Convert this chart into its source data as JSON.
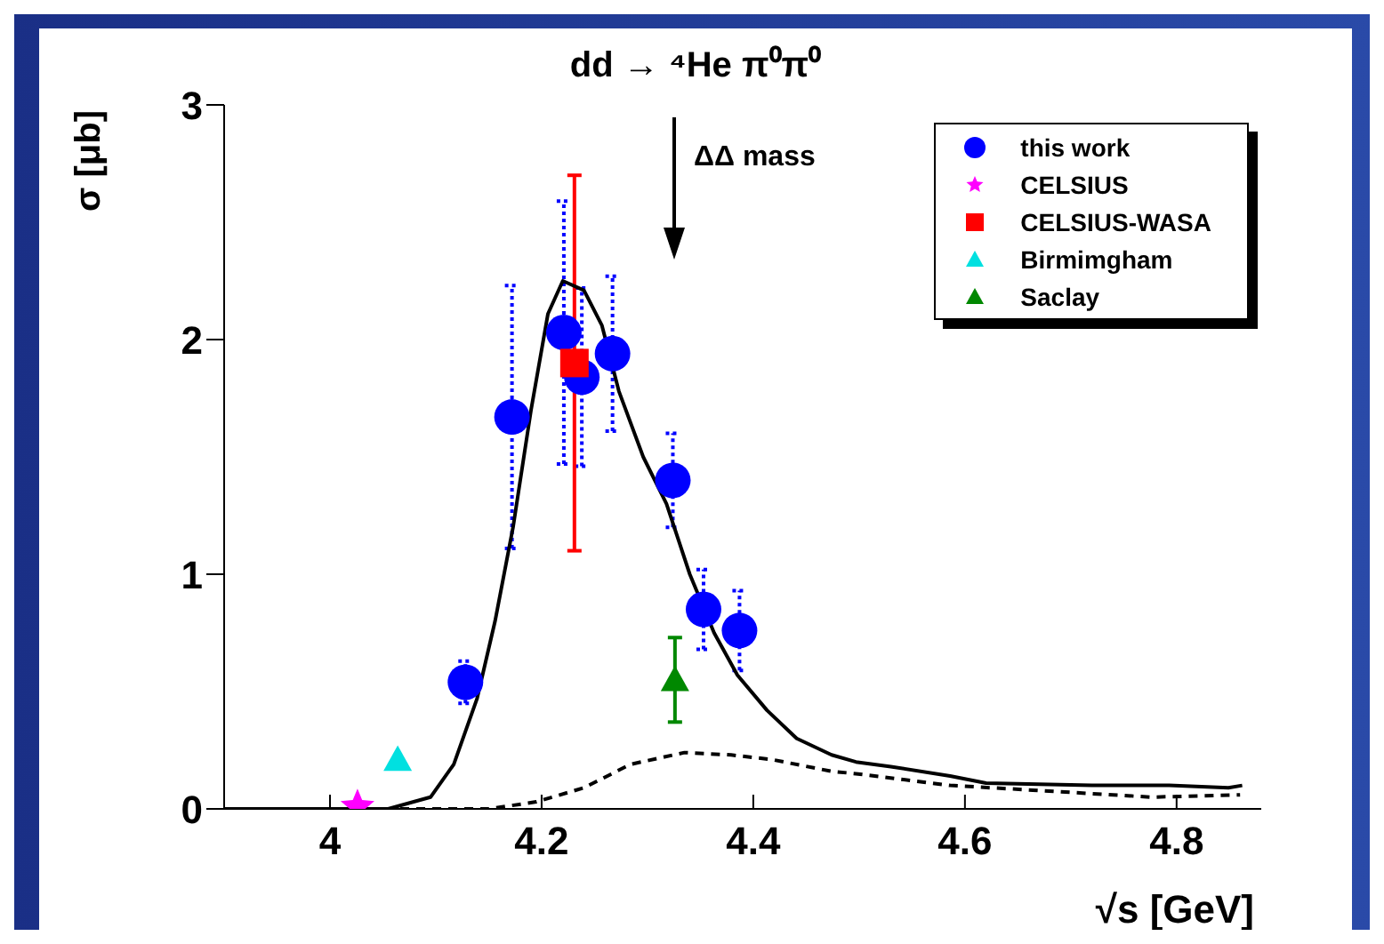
{
  "chart_data": {
    "type": "scatter",
    "title": "dd → ⁴He π⁰π⁰",
    "xlabel": "√s [GeV]",
    "ylabel": "σ [μb]",
    "xlim": [
      3.9,
      4.88
    ],
    "xticks": [
      4,
      4.2,
      4.4,
      4.6,
      4.8
    ],
    "ylim": [
      0,
      3
    ],
    "yticks": [
      0,
      1,
      2,
      3
    ],
    "grid": false,
    "legend": "top right",
    "annotations": [
      "ΔΔ mass"
    ],
    "series": [
      {
        "name": "this work",
        "marker": "circle",
        "color": "#0000ff",
        "x": [
          4.128,
          4.172,
          4.221,
          4.238,
          4.267,
          4.324,
          4.353,
          4.387
        ],
        "values": [
          0.54,
          1.67,
          2.03,
          1.84,
          1.94,
          1.4,
          0.85,
          0.76
        ],
        "errors": [
          0.09,
          0.56,
          0.56,
          0.38,
          0.33,
          0.2,
          0.17,
          0.17
        ]
      },
      {
        "name": "CELSIUS",
        "marker": "star",
        "color": "#ff00ff",
        "x": [
          4.026
        ],
        "values": [
          0.01
        ]
      },
      {
        "name": "CELSIUS-WASA",
        "marker": "square",
        "color": "#ff0000",
        "x": [
          4.231
        ],
        "values": [
          1.9
        ],
        "errors": [
          0.8
        ]
      },
      {
        "name": "Birmimgham",
        "marker": "triangle",
        "color": "#00e0e0",
        "x": [
          4.064
        ],
        "values": [
          0.21
        ]
      },
      {
        "name": "Saclay",
        "marker": "triangle",
        "color": "#008800",
        "x": [
          4.326
        ],
        "values": [
          0.55
        ],
        "errors": [
          0.18
        ]
      },
      {
        "type": "line",
        "marker": "none",
        "line_style": "solid",
        "color": "#000000",
        "x": [
          3.9,
          4.055,
          4.095,
          4.117,
          4.139,
          4.156,
          4.173,
          4.19,
          4.206,
          4.22,
          4.24,
          4.257,
          4.273,
          4.296,
          4.318,
          4.34,
          4.363,
          4.385,
          4.413,
          4.441,
          4.474,
          4.497,
          4.53,
          4.586,
          4.62,
          4.72,
          4.793,
          4.849,
          4.862
        ],
        "values": [
          0,
          0,
          0.05,
          0.19,
          0.47,
          0.8,
          1.2,
          1.7,
          2.11,
          2.25,
          2.21,
          2.06,
          1.78,
          1.5,
          1.3,
          1.0,
          0.75,
          0.57,
          0.42,
          0.3,
          0.23,
          0.2,
          0.18,
          0.14,
          0.11,
          0.1,
          0.1,
          0.09,
          0.1
        ]
      },
      {
        "type": "line",
        "marker": "none",
        "line_style": "dashed",
        "color": "#000000",
        "x": [
          3.9,
          4.15,
          4.195,
          4.24,
          4.284,
          4.335,
          4.379,
          4.418,
          4.474,
          4.497,
          4.586,
          4.664,
          4.776,
          4.86
        ],
        "values": [
          0,
          0,
          0.03,
          0.09,
          0.19,
          0.24,
          0.23,
          0.21,
          0.16,
          0.15,
          0.1,
          0.08,
          0.05,
          0.06
        ]
      }
    ]
  }
}
